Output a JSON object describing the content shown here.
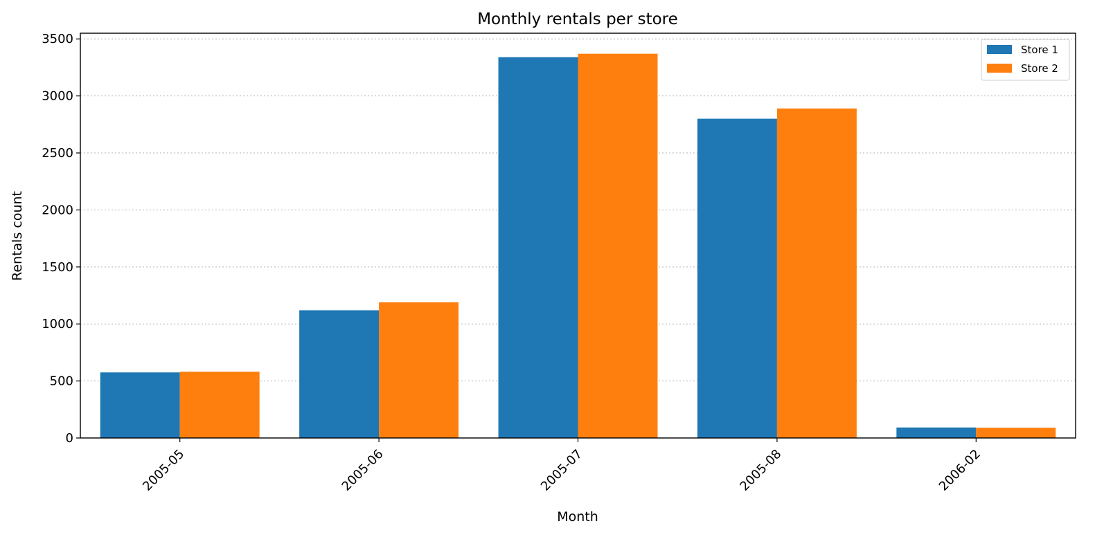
{
  "chart_data": {
    "type": "bar",
    "title": "Monthly rentals per store",
    "xlabel": "Month",
    "ylabel": "Rentals count",
    "categories": [
      "2005-05",
      "2005-06",
      "2005-07",
      "2005-08",
      "2006-02"
    ],
    "series": [
      {
        "name": "Store 1",
        "color": "#1f77b4",
        "values": [
          575,
          1120,
          3340,
          2800,
          92
        ]
      },
      {
        "name": "Store 2",
        "color": "#ff7f0e",
        "values": [
          581,
          1190,
          3370,
          2890,
          90
        ]
      }
    ],
    "ylim": [
      0,
      3550
    ],
    "yticks": [
      0,
      500,
      1000,
      1500,
      2000,
      2500,
      3000,
      3500
    ],
    "grid": {
      "y": true,
      "style": "dotted"
    },
    "legend": {
      "position": "top-right"
    },
    "xtick_rotation": -45
  }
}
